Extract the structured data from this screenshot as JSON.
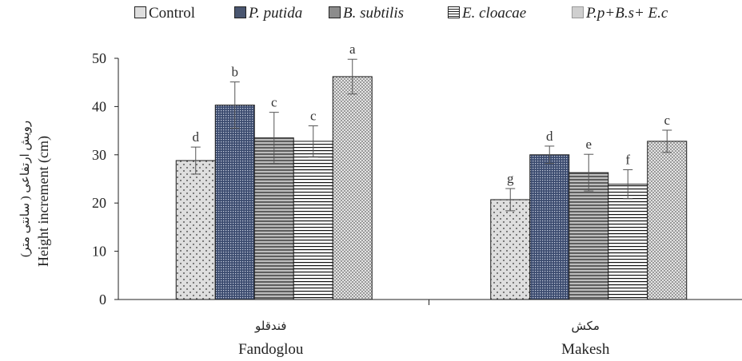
{
  "chart_data": {
    "type": "bar",
    "categories": [
      "Fandoglou",
      "Makesh"
    ],
    "category_labels_fa": [
      "فندقلو",
      "مکش"
    ],
    "series": [
      {
        "name": "Control",
        "italic": false,
        "values": [
          28.8,
          20.7
        ],
        "errors": [
          2.8,
          2.3
        ],
        "letters": [
          "d",
          "g"
        ],
        "color": "#dedede",
        "pattern": "dots"
      },
      {
        "name": "P. putida",
        "italic": true,
        "values": [
          40.3,
          30.0
        ],
        "errors": [
          4.8,
          1.8
        ],
        "letters": [
          "b",
          "d"
        ],
        "color": "#4a5670",
        "pattern": "dense-dots"
      },
      {
        "name": "B. subtilis",
        "italic": true,
        "values": [
          33.5,
          26.3
        ],
        "errors": [
          5.3,
          3.8
        ],
        "letters": [
          "c",
          "e"
        ],
        "color": "#8c8c8c",
        "pattern": "h-lines"
      },
      {
        "name": "E. cloacae",
        "italic": true,
        "values": [
          32.8,
          23.9
        ],
        "errors": [
          3.2,
          3.0
        ],
        "letters": [
          "c",
          "f"
        ],
        "color": "#ffffff",
        "pattern": "h-lines-black"
      },
      {
        "name": "P.p+B.s+ E.c",
        "italic": true,
        "values": [
          46.2,
          32.8
        ],
        "errors": [
          3.6,
          2.3
        ],
        "letters": [
          "a",
          "c"
        ],
        "color": "#cfcfcf",
        "pattern": "checker"
      }
    ],
    "ylabel": "Height increment (cm)",
    "ylabel_fa": "رویش ارتفاعی ( سانتی متر)",
    "xlabel": "",
    "ylim": [
      0,
      50
    ],
    "yticks": [
      "0",
      "10",
      "20",
      "30",
      "40",
      "50"
    ],
    "grid": false,
    "legend_position": "top"
  }
}
